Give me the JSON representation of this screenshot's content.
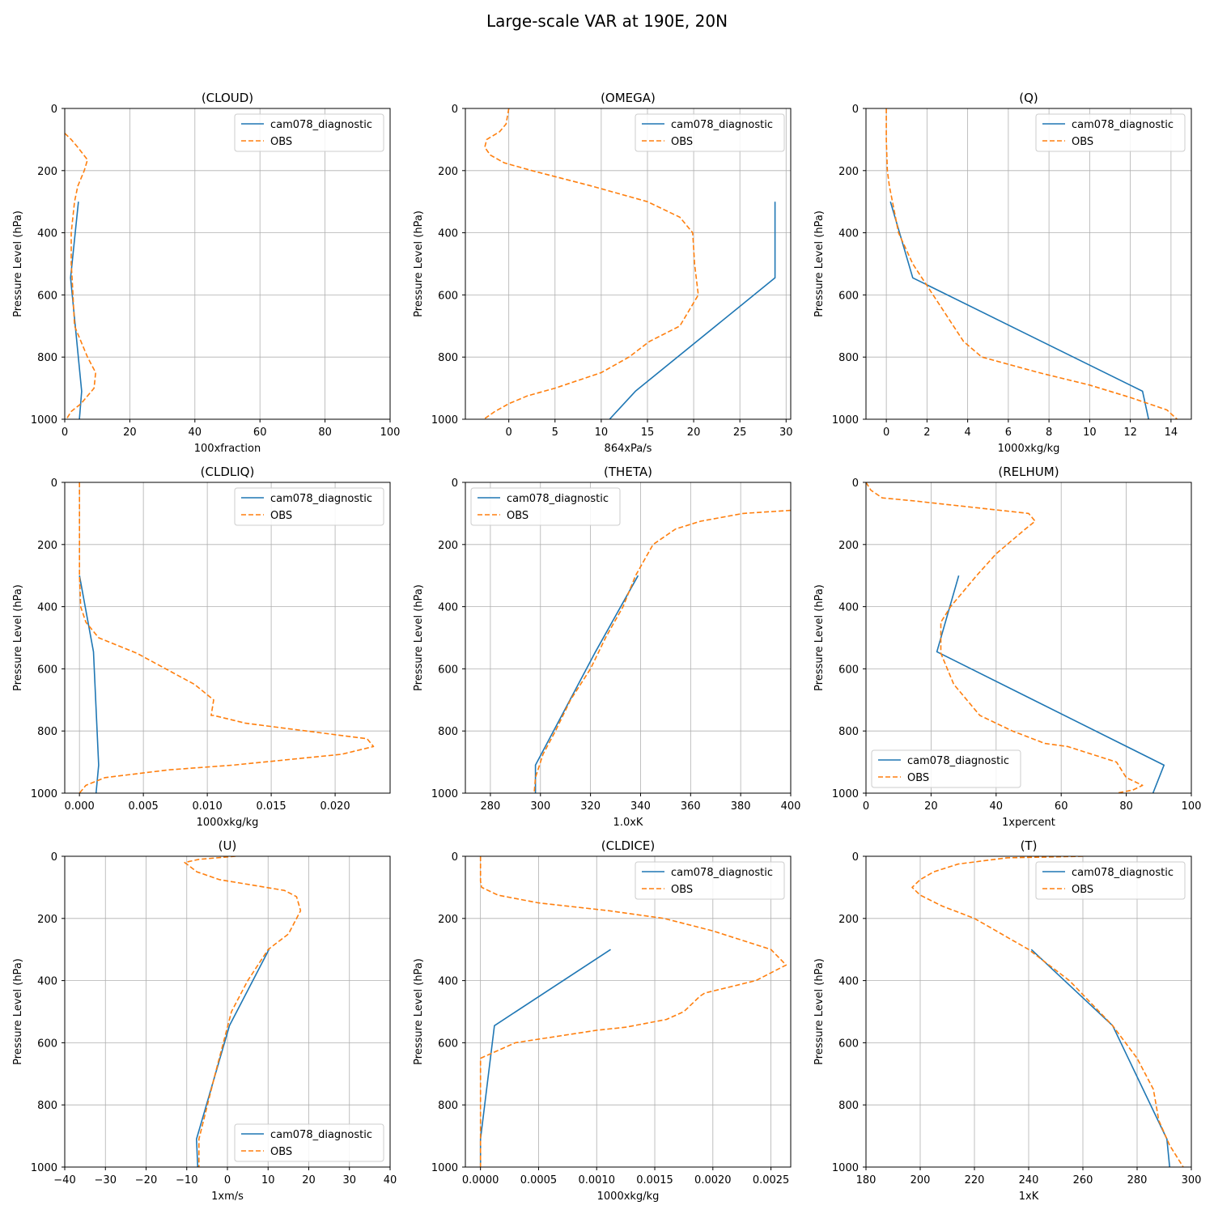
{
  "figure": {
    "title": "Large-scale VAR at 190E, 20N"
  },
  "colors": {
    "model": "#1f77b4",
    "obs": "#ff7f0e",
    "grid": "#b0b0b0"
  },
  "chart_data": [
    {
      "type": "line",
      "title": "(CLOUD)",
      "xlabel": "100xfraction",
      "ylabel": "Pressure Level (hPa)",
      "xlim": [
        0,
        100
      ],
      "ylim": [
        1000,
        0
      ],
      "xticks": [
        0,
        20,
        40,
        60,
        80,
        100
      ],
      "xtick_labels": [
        "0",
        "20",
        "40",
        "60",
        "80",
        "100"
      ],
      "yticks": [
        0,
        200,
        400,
        600,
        800,
        1000
      ],
      "grid": true,
      "legend": "upper right",
      "series": [
        {
          "name": "cam078_diagnostic",
          "style": "solid",
          "x": [
            4.2,
            1.8,
            5.2,
            4.5
          ],
          "y": [
            300,
            545,
            910,
            1000
          ]
        },
        {
          "name": "OBS",
          "style": "dashed",
          "x": [
            0,
            2,
            4,
            7,
            6,
            4,
            3,
            2,
            2,
            2.3,
            3,
            7,
            9.5,
            9,
            5,
            2,
            0.5
          ],
          "y": [
            80,
            100,
            125,
            165,
            200,
            250,
            300,
            400,
            500,
            550,
            700,
            800,
            850,
            900,
            950,
            975,
            1000
          ]
        }
      ]
    },
    {
      "type": "line",
      "title": "(OMEGA)",
      "xlabel": "864xPa/s",
      "ylabel": "Pressure Level (hPa)",
      "xlim": [
        -4.7,
        30.5
      ],
      "ylim": [
        1000,
        0
      ],
      "xticks": [
        0,
        5,
        10,
        15,
        20,
        25,
        30
      ],
      "xtick_labels": [
        "0",
        "5",
        "10",
        "15",
        "20",
        "25",
        "30"
      ],
      "yticks": [
        0,
        200,
        400,
        600,
        800,
        1000
      ],
      "grid": true,
      "legend": "upper right",
      "series": [
        {
          "name": "cam078_diagnostic",
          "style": "solid",
          "x": [
            28.8,
            28.8,
            13.7,
            10.9
          ],
          "y": [
            300,
            545,
            910,
            1000
          ]
        },
        {
          "name": "OBS",
          "style": "dashed",
          "x": [
            0,
            -0.3,
            -1,
            -2.4,
            -2.6,
            -2,
            -0.5,
            2.5,
            9,
            15,
            18.5,
            19.9,
            20.1,
            20.5,
            19.5,
            18.5,
            15.2,
            13,
            10,
            5,
            2,
            0,
            -1.5,
            -2.7
          ],
          "y": [
            0,
            50,
            75,
            100,
            125,
            150,
            175,
            200,
            250,
            300,
            350,
            400,
            500,
            600,
            650,
            700,
            750,
            800,
            850,
            900,
            925,
            950,
            975,
            1000
          ]
        }
      ]
    },
    {
      "type": "line",
      "title": "(Q)",
      "xlabel": "1000xkg/kg",
      "ylabel": "Pressure Level (hPa)",
      "xlim": [
        -1,
        15
      ],
      "ylim": [
        1000,
        0
      ],
      "xticks": [
        0,
        2,
        4,
        6,
        8,
        10,
        12,
        14
      ],
      "xtick_labels": [
        "0",
        "2",
        "4",
        "6",
        "8",
        "10",
        "12",
        "14"
      ],
      "yticks": [
        0,
        200,
        400,
        600,
        800,
        1000
      ],
      "grid": true,
      "legend": "upper right",
      "series": [
        {
          "name": "cam078_diagnostic",
          "style": "solid",
          "x": [
            0.2,
            1.3,
            12.6,
            12.9
          ],
          "y": [
            300,
            545,
            910,
            1000
          ]
        },
        {
          "name": "OBS",
          "style": "dashed",
          "x": [
            0,
            0,
            0.05,
            0.15,
            0.3,
            0.6,
            1.3,
            1.8,
            2.8,
            3.8,
            4.7,
            7.5,
            10,
            12,
            13.8,
            14.3
          ],
          "y": [
            0,
            100,
            200,
            250,
            300,
            400,
            500,
            550,
            650,
            750,
            800,
            850,
            890,
            930,
            970,
            1000
          ]
        }
      ]
    },
    {
      "type": "line",
      "title": "(CLDLIQ)",
      "xlabel": "1000xkg/kg",
      "ylabel": "Pressure Level (hPa)",
      "xlim": [
        -0.00115,
        0.0243
      ],
      "ylim": [
        1000,
        0
      ],
      "xticks": [
        0,
        0.005,
        0.01,
        0.015,
        0.02
      ],
      "xtick_labels": [
        "0.000",
        "0.005",
        "0.010",
        "0.015",
        "0.020"
      ],
      "yticks": [
        0,
        200,
        400,
        600,
        800,
        1000
      ],
      "grid": true,
      "legend": "upper right",
      "series": [
        {
          "name": "cam078_diagnostic",
          "style": "solid",
          "x": [
            0,
            0.0011,
            0.0015,
            0.0013
          ],
          "y": [
            300,
            545,
            910,
            1000
          ]
        },
        {
          "name": "OBS",
          "style": "dashed",
          "x": [
            0,
            0,
            0.0001,
            0.0005,
            0.0015,
            0.0045,
            0.009,
            0.0105,
            0.0103,
            0.0105,
            0.013,
            0.0225,
            0.023,
            0.0205,
            0.012,
            0.007,
            0.002,
            0.0005,
            0
          ],
          "y": [
            0,
            300,
            400,
            450,
            500,
            550,
            650,
            700,
            750,
            750,
            775,
            825,
            850,
            875,
            910,
            925,
            950,
            975,
            1000
          ]
        }
      ]
    },
    {
      "type": "line",
      "title": "(THETA)",
      "xlabel": "1.0xK",
      "ylabel": "Pressure Level (hPa)",
      "xlim": [
        270,
        400
      ],
      "ylim": [
        1000,
        0
      ],
      "xticks": [
        280,
        300,
        320,
        340,
        360,
        380,
        400
      ],
      "xtick_labels": [
        "280",
        "300",
        "320",
        "340",
        "360",
        "380",
        "400"
      ],
      "yticks": [
        0,
        200,
        400,
        600,
        800,
        1000
      ],
      "grid": true,
      "legend": "upper left",
      "series": [
        {
          "name": "cam078_diagnostic",
          "style": "solid",
          "x": [
            339,
            322,
            298,
            298
          ],
          "y": [
            300,
            545,
            910,
            1000
          ]
        },
        {
          "name": "OBS",
          "style": "dashed",
          "x": [
            400,
            381,
            364,
            354,
            345,
            338,
            333,
            326,
            320,
            312,
            306,
            301,
            299,
            298,
            297.5
          ],
          "y": [
            90,
            100,
            125,
            150,
            200,
            300,
            400,
            500,
            600,
            700,
            800,
            875,
            925,
            950,
            1000
          ]
        }
      ]
    },
    {
      "type": "line",
      "title": "(RELHUM)",
      "xlabel": "1xpercent",
      "ylabel": "Pressure Level (hPa)",
      "xlim": [
        0,
        100
      ],
      "ylim": [
        1000,
        0
      ],
      "xticks": [
        0,
        20,
        40,
        60,
        80,
        100
      ],
      "xtick_labels": [
        "0",
        "20",
        "40",
        "60",
        "80",
        "100"
      ],
      "yticks": [
        0,
        200,
        400,
        600,
        800,
        1000
      ],
      "grid": true,
      "legend": "lower left",
      "series": [
        {
          "name": "cam078_diagnostic",
          "style": "solid",
          "x": [
            28.5,
            21.8,
            91.6,
            88.2
          ],
          "y": [
            300,
            545,
            910,
            1000
          ]
        },
        {
          "name": "OBS",
          "style": "dashed",
          "x": [
            0,
            1.5,
            5,
            15,
            50,
            52,
            49,
            40,
            34,
            26,
            23,
            23,
            27,
            35,
            45,
            55,
            62,
            77,
            80,
            85,
            82,
            77
          ],
          "y": [
            0,
            25,
            50,
            60,
            100,
            125,
            150,
            230,
            300,
            400,
            450,
            550,
            650,
            750,
            800,
            840,
            850,
            900,
            950,
            975,
            990,
            1000
          ]
        }
      ]
    },
    {
      "type": "line",
      "title": "(U)",
      "xlabel": "1xm/s",
      "ylabel": "Pressure Level (hPa)",
      "xlim": [
        -40,
        40
      ],
      "ylim": [
        1000,
        0
      ],
      "xticks": [
        -40,
        -30,
        -20,
        -10,
        0,
        10,
        20,
        30,
        40
      ],
      "xtick_labels": [
        "−40",
        "−30",
        "−20",
        "−10",
        "0",
        "10",
        "20",
        "30",
        "40"
      ],
      "yticks": [
        0,
        200,
        400,
        600,
        800,
        1000
      ],
      "grid": true,
      "legend": "lower right",
      "series": [
        {
          "name": "cam078_diagnostic",
          "style": "solid",
          "x": [
            10.2,
            0.5,
            -7.6,
            -7.3
          ],
          "y": [
            300,
            545,
            910,
            1000
          ]
        },
        {
          "name": "OBS",
          "style": "dashed",
          "x": [
            2,
            -7,
            -10.5,
            -7.5,
            -2,
            14,
            17,
            18,
            15,
            10,
            5,
            1,
            0,
            -3,
            -7,
            -7
          ],
          "y": [
            0,
            10,
            20,
            50,
            75,
            110,
            130,
            175,
            250,
            300,
            400,
            500,
            550,
            700,
            910,
            1000
          ]
        }
      ]
    },
    {
      "type": "line",
      "title": "(CLDICE)",
      "xlabel": "1000xkg/kg",
      "ylabel": "Pressure Level (hPa)",
      "xlim": [
        -0.00013,
        0.00267
      ],
      "ylim": [
        1000,
        0
      ],
      "xticks": [
        0,
        0.0005,
        0.001,
        0.0015,
        0.002,
        0.0025
      ],
      "xtick_labels": [
        "0.0000",
        "0.0005",
        "0.0010",
        "0.0015",
        "0.0020",
        "0.0025"
      ],
      "yticks": [
        0,
        200,
        400,
        600,
        800,
        1000
      ],
      "grid": true,
      "legend": "upper right",
      "series": [
        {
          "name": "cam078_diagnostic",
          "style": "solid",
          "x": [
            0.00112,
            0.00012,
            0,
            0
          ],
          "y": [
            300,
            545,
            910,
            1000
          ]
        },
        {
          "name": "OBS",
          "style": "dashed",
          "x": [
            0,
            0,
            1e-05,
            0.00015,
            0.0005,
            0.0011,
            0.00158,
            0.002,
            0.0025,
            0.00263,
            0.00237,
            0.00193,
            0.00189,
            0.00175,
            0.0016,
            0.00125,
            0.001,
            0.0003,
            0.00015,
            0,
            0
          ],
          "y": [
            0,
            80,
            100,
            125,
            150,
            175,
            200,
            240,
            300,
            350,
            400,
            440,
            450,
            500,
            525,
            550,
            560,
            600,
            625,
            650,
            1000
          ]
        }
      ]
    },
    {
      "type": "line",
      "title": "(T)",
      "xlabel": "1xK",
      "ylabel": "Pressure Level (hPa)",
      "xlim": [
        180,
        300
      ],
      "ylim": [
        1000,
        0
      ],
      "xticks": [
        180,
        200,
        220,
        240,
        260,
        280,
        300
      ],
      "xtick_labels": [
        "180",
        "200",
        "220",
        "240",
        "260",
        "280",
        "300"
      ],
      "yticks": [
        0,
        200,
        400,
        600,
        800,
        1000
      ],
      "grid": true,
      "legend": "upper right",
      "series": [
        {
          "name": "cam078_diagnostic",
          "style": "solid",
          "x": [
            241,
            271,
            291,
            292
          ],
          "y": [
            300,
            545,
            910,
            1000
          ]
        },
        {
          "name": "OBS",
          "style": "dashed",
          "x": [
            260,
            232,
            214,
            205,
            200,
            197,
            200,
            208,
            220,
            230,
            240,
            255,
            271,
            280,
            286,
            288,
            292,
            297
          ],
          "y": [
            0,
            5,
            25,
            50,
            75,
            100,
            125,
            160,
            200,
            250,
            300,
            400,
            545,
            650,
            750,
            850,
            930,
            1000
          ]
        }
      ]
    }
  ]
}
